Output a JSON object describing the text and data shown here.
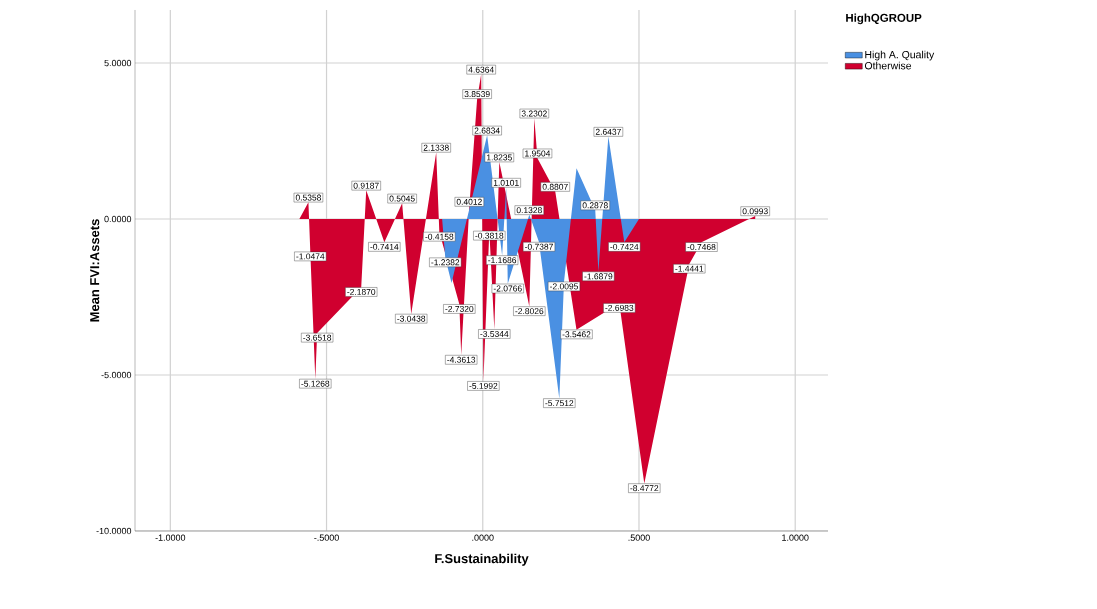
{
  "chart_data": {
    "type": "area",
    "xlabel": "F.Sustainability",
    "ylabel": "Mean FVI:Assets",
    "legend_title": "HighQGROUP",
    "legend": "top right",
    "grid": true,
    "xlim": [
      -1.113,
      1.105
    ],
    "ylim": [
      -10,
      6.7
    ],
    "xticks": [
      {
        "value": -1,
        "label": "-1.0000"
      },
      {
        "value": -0.5,
        "label": "-.5000"
      },
      {
        "value": 0,
        "label": ".0000"
      },
      {
        "value": 0.5,
        "label": ".5000"
      },
      {
        "value": 1,
        "label": "1.0000"
      }
    ],
    "yticks": [
      {
        "value": -10,
        "label": "-10.0000"
      },
      {
        "value": -5,
        "label": "-5.0000"
      },
      {
        "value": 0,
        "label": "0.0000"
      },
      {
        "value": 5,
        "label": "5.0000"
      }
    ],
    "series": [
      {
        "name": "High A. Quality",
        "color": "#4a90e2",
        "x": [
          -0.13,
          -0.12,
          -0.1,
          0.014,
          0.062,
          0.075,
          0.08,
          0.149,
          0.18,
          0.245,
          0.26,
          0.3,
          0.36,
          0.37,
          0.402,
          0.453,
          0.5
        ],
        "values": [
          0,
          -1.2382,
          -2.05,
          2.6834,
          -1.1686,
          1.0101,
          -2.0766,
          0.1328,
          -0.7387,
          -5.7512,
          -2.0095,
          1.63,
          0.2878,
          -1.6879,
          2.6437,
          -0.7424,
          0
        ],
        "value_labels": [
          null,
          "-1.2382",
          null,
          "2.6834",
          "-1.1686",
          "1.0101",
          "-2.0766",
          "0.1328",
          "-0.7387",
          "-5.7512",
          "-2.0095",
          null,
          "0.2878",
          "-1.6879",
          "2.6437",
          "-0.7424",
          null
        ]
      },
      {
        "name": "Otherwise",
        "color": "#d0002f",
        "x": [
          -0.587,
          -0.558,
          -0.552,
          -0.536,
          -0.53,
          -0.389,
          -0.373,
          -0.315,
          -0.258,
          -0.229,
          -0.149,
          -0.139,
          -0.075,
          -0.069,
          -0.043,
          -0.018,
          -0.005,
          0.002,
          0.021,
          0.037,
          0.053,
          0.149,
          0.165,
          0.175,
          0.232,
          0.3,
          0.437,
          0.517,
          0.661,
          0.7,
          0.872
        ],
        "values": [
          0,
          0.5358,
          -1.0474,
          -5.1268,
          -3.6518,
          -2.187,
          0.9187,
          -0.7414,
          0.5045,
          -3.0438,
          2.1338,
          -0.4158,
          -2.732,
          -4.3613,
          0.4012,
          3.8539,
          4.6364,
          -5.1992,
          -0.3818,
          -3.5344,
          1.8235,
          -2.8026,
          3.2302,
          1.9504,
          0.8807,
          -3.5462,
          -2.6983,
          -8.4772,
          -1.4441,
          -0.7468,
          0.0993
        ],
        "value_labels": [
          null,
          "0.5358",
          "-1.0474",
          "-5.1268",
          "-3.6518",
          "-2.1870",
          "0.9187",
          "-0.7414",
          "0.5045",
          "-3.0438",
          "2.1338",
          "-0.4158",
          "-2.7320",
          "-4.3613",
          "0.4012",
          "3.8539",
          "4.6364",
          "-5.1992",
          "-0.3818",
          "-3.5344",
          "1.8235",
          "-2.8026",
          "3.2302",
          "1.9504",
          "0.8807",
          "-3.5462",
          "-2.6983",
          "-8.4772",
          "-1.4441",
          "-0.7468",
          "0.0993"
        ]
      }
    ]
  }
}
